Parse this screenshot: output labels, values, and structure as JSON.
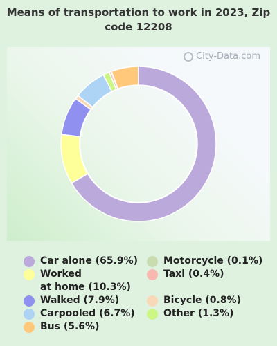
{
  "chart_data": {
    "type": "pie",
    "title": "Means of transportation to work in 2023, Zip code 12208",
    "watermark": "City-Data.com",
    "slices": [
      {
        "label": "Car alone (65.9%)",
        "value": 65.9,
        "color": "#bba9dc"
      },
      {
        "label": "Worked\nat home (10.3%)",
        "value": 10.3,
        "color": "#ffff99"
      },
      {
        "label": "Walked (7.9%)",
        "value": 7.9,
        "color": "#9090f0"
      },
      {
        "label": "Bicycle (0.8%)",
        "value": 0.8,
        "color": "#f9d8b8"
      },
      {
        "label": "Carpooled (6.7%)",
        "value": 6.7,
        "color": "#aed4f5"
      },
      {
        "label": "Other (1.3%)",
        "value": 1.3,
        "color": "#ccf786"
      },
      {
        "label": "Taxi (0.4%)",
        "value": 0.4,
        "color": "#f7b8b0"
      },
      {
        "label": "Motorcycle (0.1%)",
        "value": 0.1,
        "color": "#c8dcb0"
      },
      {
        "label": "Bus (5.6%)",
        "value": 5.6,
        "color": "#ffc87a"
      }
    ]
  },
  "legend": {
    "left": [
      {
        "text": "Car alone (65.9%)",
        "color": "#bba9dc"
      },
      {
        "text": "Worked\nat home (10.3%)",
        "color": "#ffff99"
      },
      {
        "text": "Walked (7.9%)",
        "color": "#9090f0"
      },
      {
        "text": "Carpooled (6.7%)",
        "color": "#aed4f5"
      },
      {
        "text": "Bus (5.6%)",
        "color": "#ffc87a"
      }
    ],
    "right": [
      {
        "text": "Motorcycle (0.1%)",
        "color": "#c8dcb0"
      },
      {
        "text": "Taxi (0.4%)",
        "color": "#f7b8b0"
      },
      {
        "text": "Bicycle (0.8%)",
        "color": "#f9d8b8"
      },
      {
        "text": "Other (1.3%)",
        "color": "#ccf786"
      }
    ]
  }
}
